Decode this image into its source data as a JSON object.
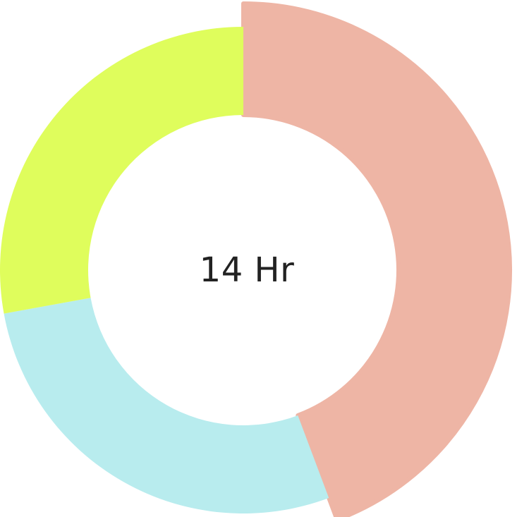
{
  "center_label": "14 Hr",
  "chart_data": {
    "type": "pie",
    "style": "donut",
    "categories": [
      "",
      "",
      ""
    ],
    "series": [
      {
        "values": [
          6.2,
          3.9,
          3.9
        ],
        "colors": [
          "#EEB5A5",
          "#B8ECEE",
          "#DFFD5C"
        ]
      }
    ],
    "total": 14,
    "total_label": "14 Hr",
    "highlighted_segment": 0,
    "start_angle_deg": 0,
    "direction": "clockwise",
    "legend": "none",
    "title": ""
  }
}
